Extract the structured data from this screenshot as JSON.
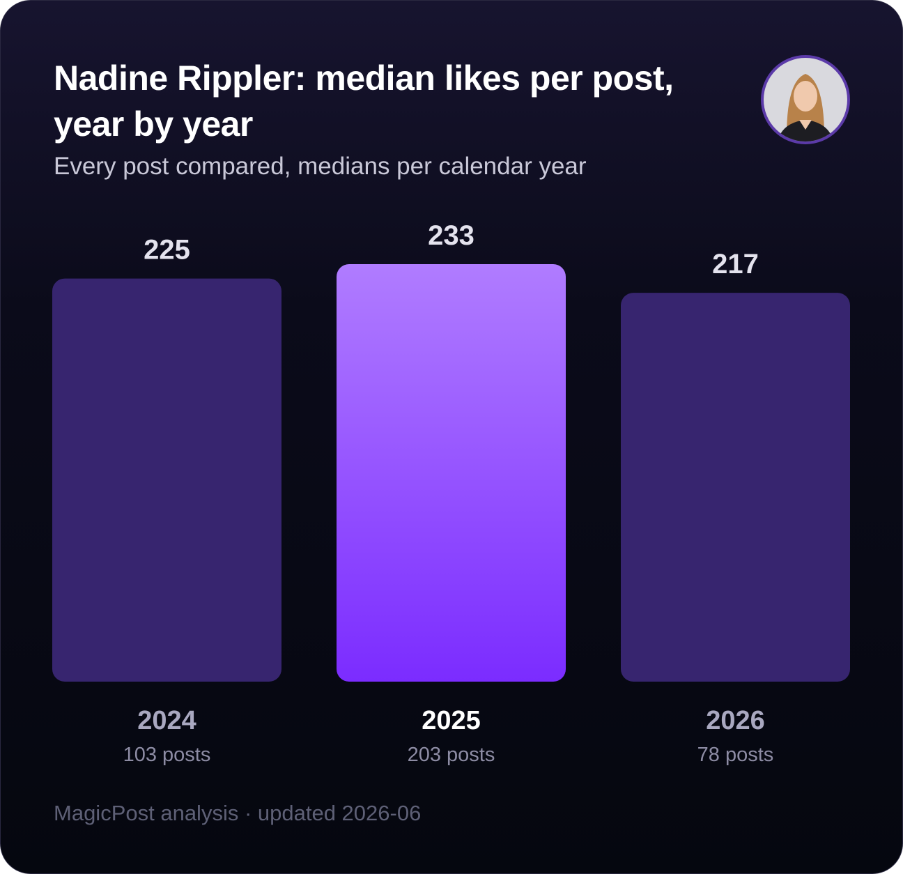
{
  "chart_data": {
    "type": "bar",
    "title": "Nadine Rippler: median likes per post, year by year",
    "subtitle": "Every post compared, medians per calendar year",
    "categories": [
      "2024",
      "2025",
      "2026"
    ],
    "category_notes": [
      "103 posts",
      "203 posts",
      "78 posts"
    ],
    "values": [
      225,
      233,
      217
    ],
    "colors": [
      "#37256f",
      [
        "#b07cff",
        "#7b2cff"
      ],
      "#37256f"
    ],
    "footer": "MagicPost analysis · updated 2026-06"
  }
}
